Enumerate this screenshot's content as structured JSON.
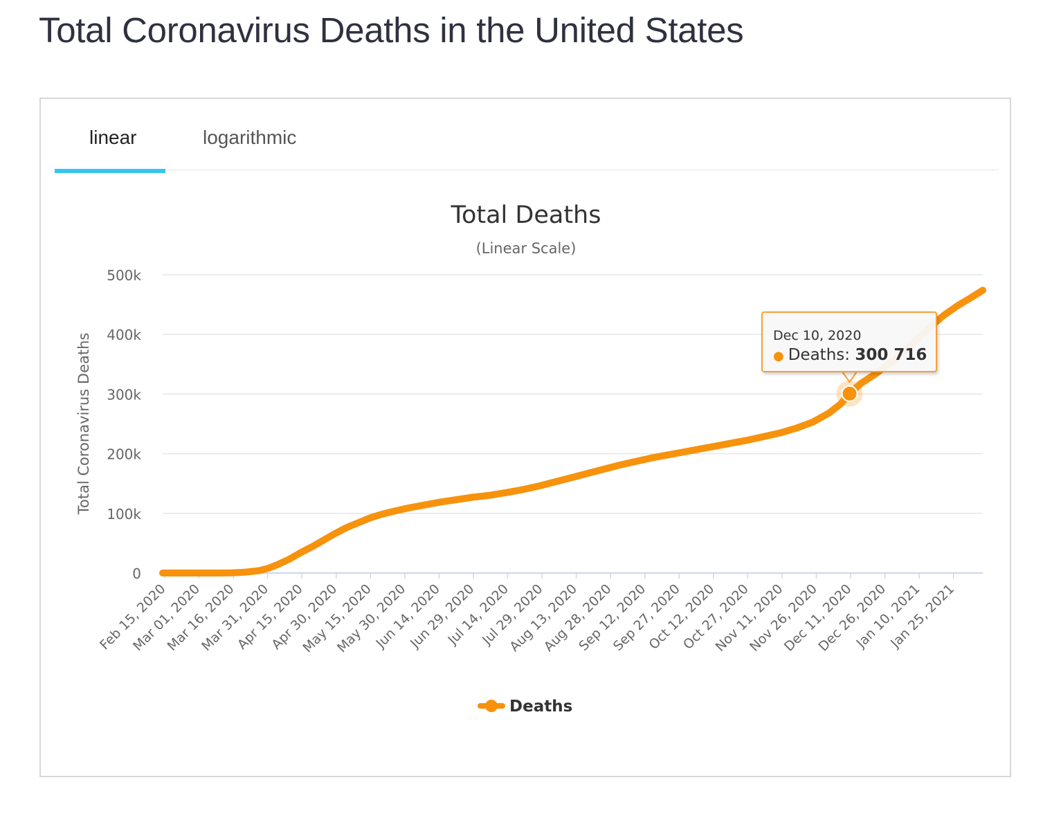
{
  "page": {
    "title": "Total Coronavirus Deaths in the United States"
  },
  "tabs": {
    "linear": "linear",
    "logarithmic": "logarithmic"
  },
  "tooltip": {
    "date": "Dec 10, 2020",
    "label": "Deaths",
    "value_text": "300 716"
  },
  "colors": {
    "series": "#f7920d",
    "tab_active": "#33c6ef",
    "tooltip_border": "#f7a035"
  },
  "chart_data": {
    "type": "line",
    "title": "Total Deaths",
    "subtitle": "(Linear Scale)",
    "ylabel": "Total Coronavirus Deaths",
    "xlabel": "",
    "ylim": [
      0,
      500000
    ],
    "yticks": [
      0,
      100000,
      200000,
      300000,
      400000,
      500000
    ],
    "ytick_labels": [
      "0",
      "100k",
      "200k",
      "300k",
      "400k",
      "500k"
    ],
    "xtick_labels": [
      "Feb 15, 2020",
      "Mar 01, 2020",
      "Mar 16, 2020",
      "Mar 31, 2020",
      "Apr 15, 2020",
      "Apr 30, 2020",
      "May 15, 2020",
      "May 30, 2020",
      "Jun 14, 2020",
      "Jun 29, 2020",
      "Jul 14, 2020",
      "Jul 29, 2020",
      "Aug 13, 2020",
      "Aug 28, 2020",
      "Sep 12, 2020",
      "Sep 27, 2020",
      "Oct 12, 2020",
      "Oct 27, 2020",
      "Nov 11, 2020",
      "Nov 26, 2020",
      "Dec 11, 2020",
      "Dec 26, 2020",
      "Jan 10, 2021",
      "Jan 25, 2021"
    ],
    "x_day_range": [
      0,
      357
    ],
    "legend": {
      "entries": [
        "Deaths"
      ],
      "placement": "bottom-center"
    },
    "highlight": {
      "day": 299,
      "value": 300716
    },
    "series": [
      {
        "name": "Deaths",
        "points": [
          [
            0,
            0
          ],
          [
            15,
            1
          ],
          [
            25,
            20
          ],
          [
            30,
            300
          ],
          [
            36,
            1500
          ],
          [
            42,
            4000
          ],
          [
            46,
            8000
          ],
          [
            50,
            14000
          ],
          [
            55,
            23000
          ],
          [
            60,
            34000
          ],
          [
            65,
            44000
          ],
          [
            70,
            55000
          ],
          [
            75,
            66000
          ],
          [
            80,
            76000
          ],
          [
            85,
            84000
          ],
          [
            90,
            92000
          ],
          [
            95,
            98000
          ],
          [
            100,
            103000
          ],
          [
            107,
            109000
          ],
          [
            114,
            114000
          ],
          [
            121,
            119000
          ],
          [
            128,
            123000
          ],
          [
            135,
            127000
          ],
          [
            142,
            130000
          ],
          [
            150,
            135000
          ],
          [
            157,
            140000
          ],
          [
            164,
            146000
          ],
          [
            171,
            153000
          ],
          [
            178,
            160000
          ],
          [
            185,
            167000
          ],
          [
            192,
            174000
          ],
          [
            199,
            181000
          ],
          [
            206,
            187000
          ],
          [
            213,
            193000
          ],
          [
            220,
            198000
          ],
          [
            227,
            203000
          ],
          [
            234,
            208000
          ],
          [
            241,
            213000
          ],
          [
            248,
            218000
          ],
          [
            255,
            223000
          ],
          [
            262,
            229000
          ],
          [
            269,
            235000
          ],
          [
            276,
            243000
          ],
          [
            283,
            253000
          ],
          [
            290,
            268000
          ],
          [
            295,
            283000
          ],
          [
            299,
            300716
          ],
          [
            304,
            318000
          ],
          [
            310,
            333000
          ],
          [
            316,
            350000
          ],
          [
            322,
            368000
          ],
          [
            328,
            390000
          ],
          [
            334,
            412000
          ],
          [
            340,
            432000
          ],
          [
            346,
            448000
          ],
          [
            352,
            462000
          ],
          [
            357,
            474000
          ]
        ]
      }
    ]
  }
}
